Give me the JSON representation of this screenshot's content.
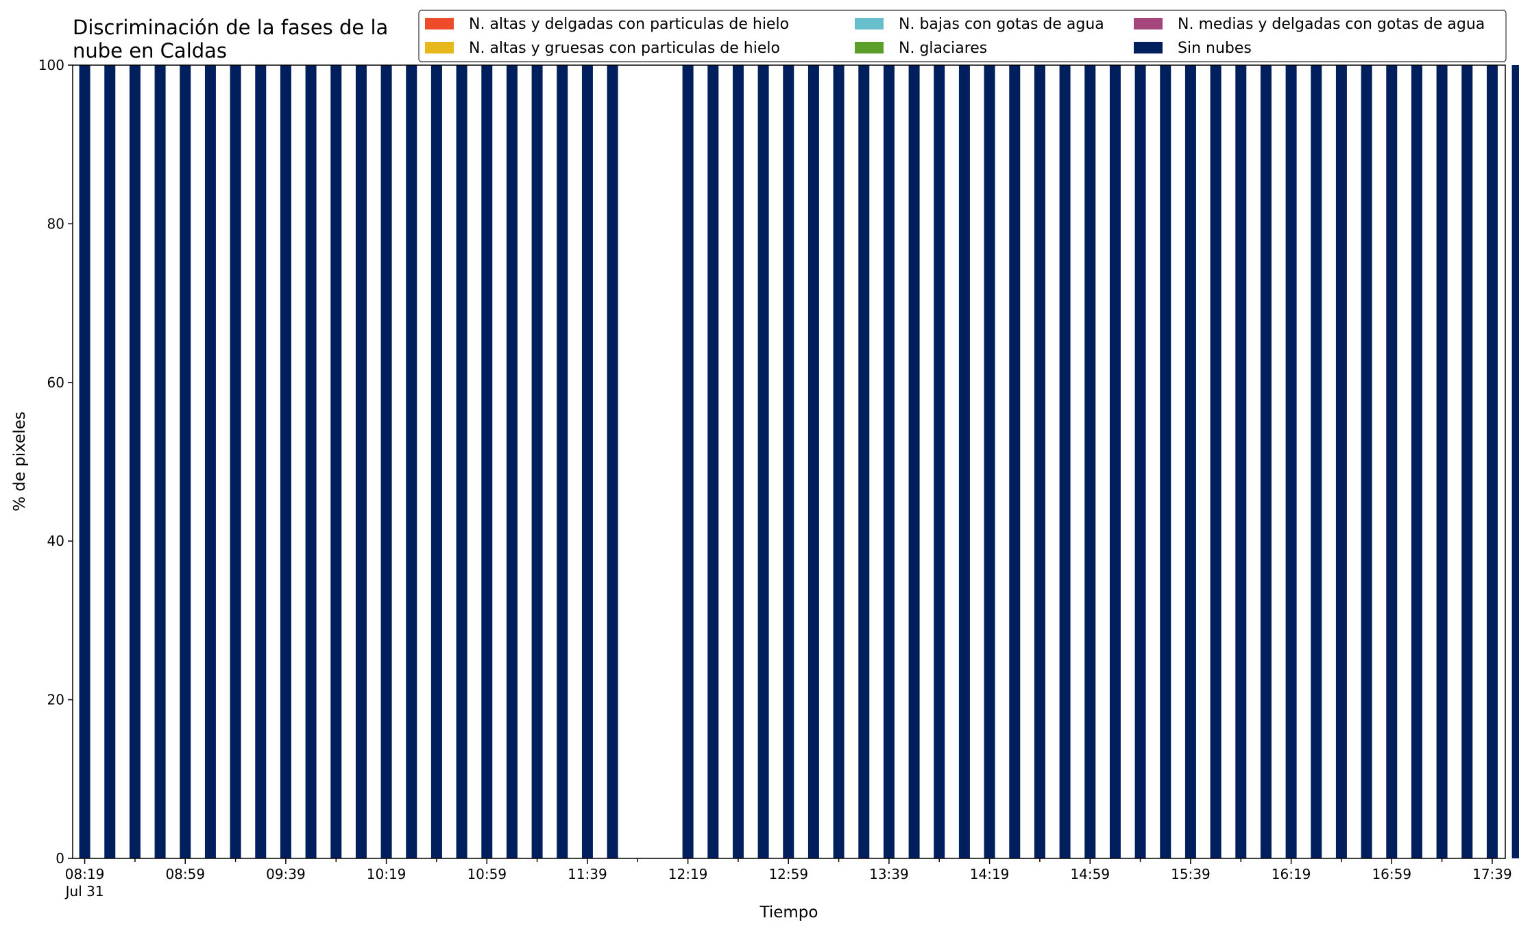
{
  "chart_data": {
    "type": "bar",
    "stacked": true,
    "title_lines": [
      "Discriminación de la fases de la",
      "nube en Caldas"
    ],
    "xlabel": "Tiempo",
    "ylabel": "% de pixeles",
    "ylim": [
      0,
      100
    ],
    "yticks": [
      0,
      20,
      40,
      60,
      80,
      100
    ],
    "grid": false,
    "legend_position": "top-right",
    "x_date_label": "Jul 31",
    "x_tick_labels": [
      "08:19",
      "08:59",
      "09:39",
      "10:19",
      "10:59",
      "11:39",
      "12:19",
      "12:59",
      "13:39",
      "14:19",
      "14:59",
      "15:39",
      "16:19",
      "16:59",
      "17:39"
    ],
    "x_start": "08:19",
    "x_end": "17:49",
    "x_step_minutes": 10,
    "series": [
      {
        "name": "N. altas y delgadas con particulas de hielo",
        "color": "#ee4b2b",
        "values": [
          0,
          0,
          0,
          0,
          0,
          0,
          0,
          0,
          0,
          0,
          0,
          0,
          0,
          0,
          0,
          0,
          0,
          0,
          0,
          0,
          0,
          0,
          0,
          0,
          0,
          0,
          0,
          0,
          0,
          0,
          0,
          0,
          0,
          0,
          0,
          0,
          0,
          0,
          0,
          0,
          0,
          0,
          0,
          0,
          0,
          0,
          0,
          0,
          0,
          0,
          0,
          0,
          0,
          0,
          0,
          0,
          0,
          0
        ]
      },
      {
        "name": "N. altas y gruesas con particulas de hielo",
        "color": "#e6b81c",
        "values": [
          0,
          0,
          0,
          0,
          0,
          0,
          0,
          0,
          0,
          0,
          0,
          0,
          0,
          0,
          0,
          0,
          0,
          0,
          0,
          0,
          0,
          0,
          0,
          0,
          0,
          0,
          0,
          0,
          0,
          0,
          0,
          0,
          0,
          0,
          0,
          0,
          0,
          0,
          0,
          0,
          0,
          0,
          0,
          0,
          0,
          0,
          0,
          0,
          0,
          0,
          0,
          0,
          0,
          0,
          0,
          0,
          0,
          0
        ]
      },
      {
        "name": "N. bajas con gotas de agua",
        "color": "#66bfca",
        "values": [
          0,
          0,
          0,
          0,
          0,
          0,
          0,
          0,
          0,
          0,
          0,
          0,
          0,
          0,
          0,
          0,
          0,
          0,
          0,
          0,
          0,
          0,
          0,
          0,
          0,
          0,
          0,
          0,
          0,
          0,
          0,
          0,
          0,
          0,
          0,
          0,
          0,
          0,
          0,
          0,
          0,
          0,
          0,
          0,
          0,
          0,
          0,
          0,
          0,
          0,
          0,
          0,
          0,
          0,
          0,
          0,
          0,
          0
        ]
      },
      {
        "name": "N. glaciares",
        "color": "#5b9f2a",
        "values": [
          0,
          0,
          0,
          0,
          0,
          0,
          0,
          0,
          0,
          0,
          0,
          0,
          0,
          0,
          0,
          0,
          0,
          0,
          0,
          0,
          0,
          0,
          0,
          0,
          0,
          0,
          0,
          0,
          0,
          0,
          0,
          0,
          0,
          0,
          0,
          0,
          0,
          0,
          0,
          0,
          0,
          0,
          0,
          0,
          0,
          0,
          0,
          0,
          0,
          0,
          0,
          0,
          0,
          0,
          0,
          0,
          0,
          0
        ]
      },
      {
        "name": "N. medias y delgadas con gotas de agua",
        "color": "#a4467b",
        "values": [
          0,
          0,
          0,
          0,
          0,
          0,
          0,
          0,
          0,
          0,
          0,
          0,
          0,
          0,
          0,
          0,
          0,
          0,
          0,
          0,
          0,
          0,
          0,
          0,
          0,
          0,
          0,
          0,
          0,
          0,
          0,
          0,
          0,
          0,
          0,
          0,
          0,
          0,
          0,
          0,
          0,
          0,
          0,
          0,
          0,
          0,
          0,
          0,
          0,
          0,
          0,
          0,
          0,
          0,
          0,
          0,
          0,
          0
        ]
      },
      {
        "name": "Sin nubes",
        "color": "#001f5c",
        "values": [
          100,
          100,
          100,
          100,
          100,
          100,
          100,
          100,
          100,
          100,
          100,
          100,
          100,
          100,
          100,
          100,
          100,
          100,
          100,
          100,
          100,
          100,
          0,
          0,
          100,
          100,
          100,
          100,
          100,
          100,
          100,
          100,
          100,
          100,
          100,
          100,
          100,
          100,
          100,
          100,
          100,
          100,
          100,
          100,
          100,
          100,
          100,
          100,
          100,
          100,
          100,
          100,
          100,
          100,
          100,
          100,
          100,
          100
        ]
      }
    ]
  }
}
